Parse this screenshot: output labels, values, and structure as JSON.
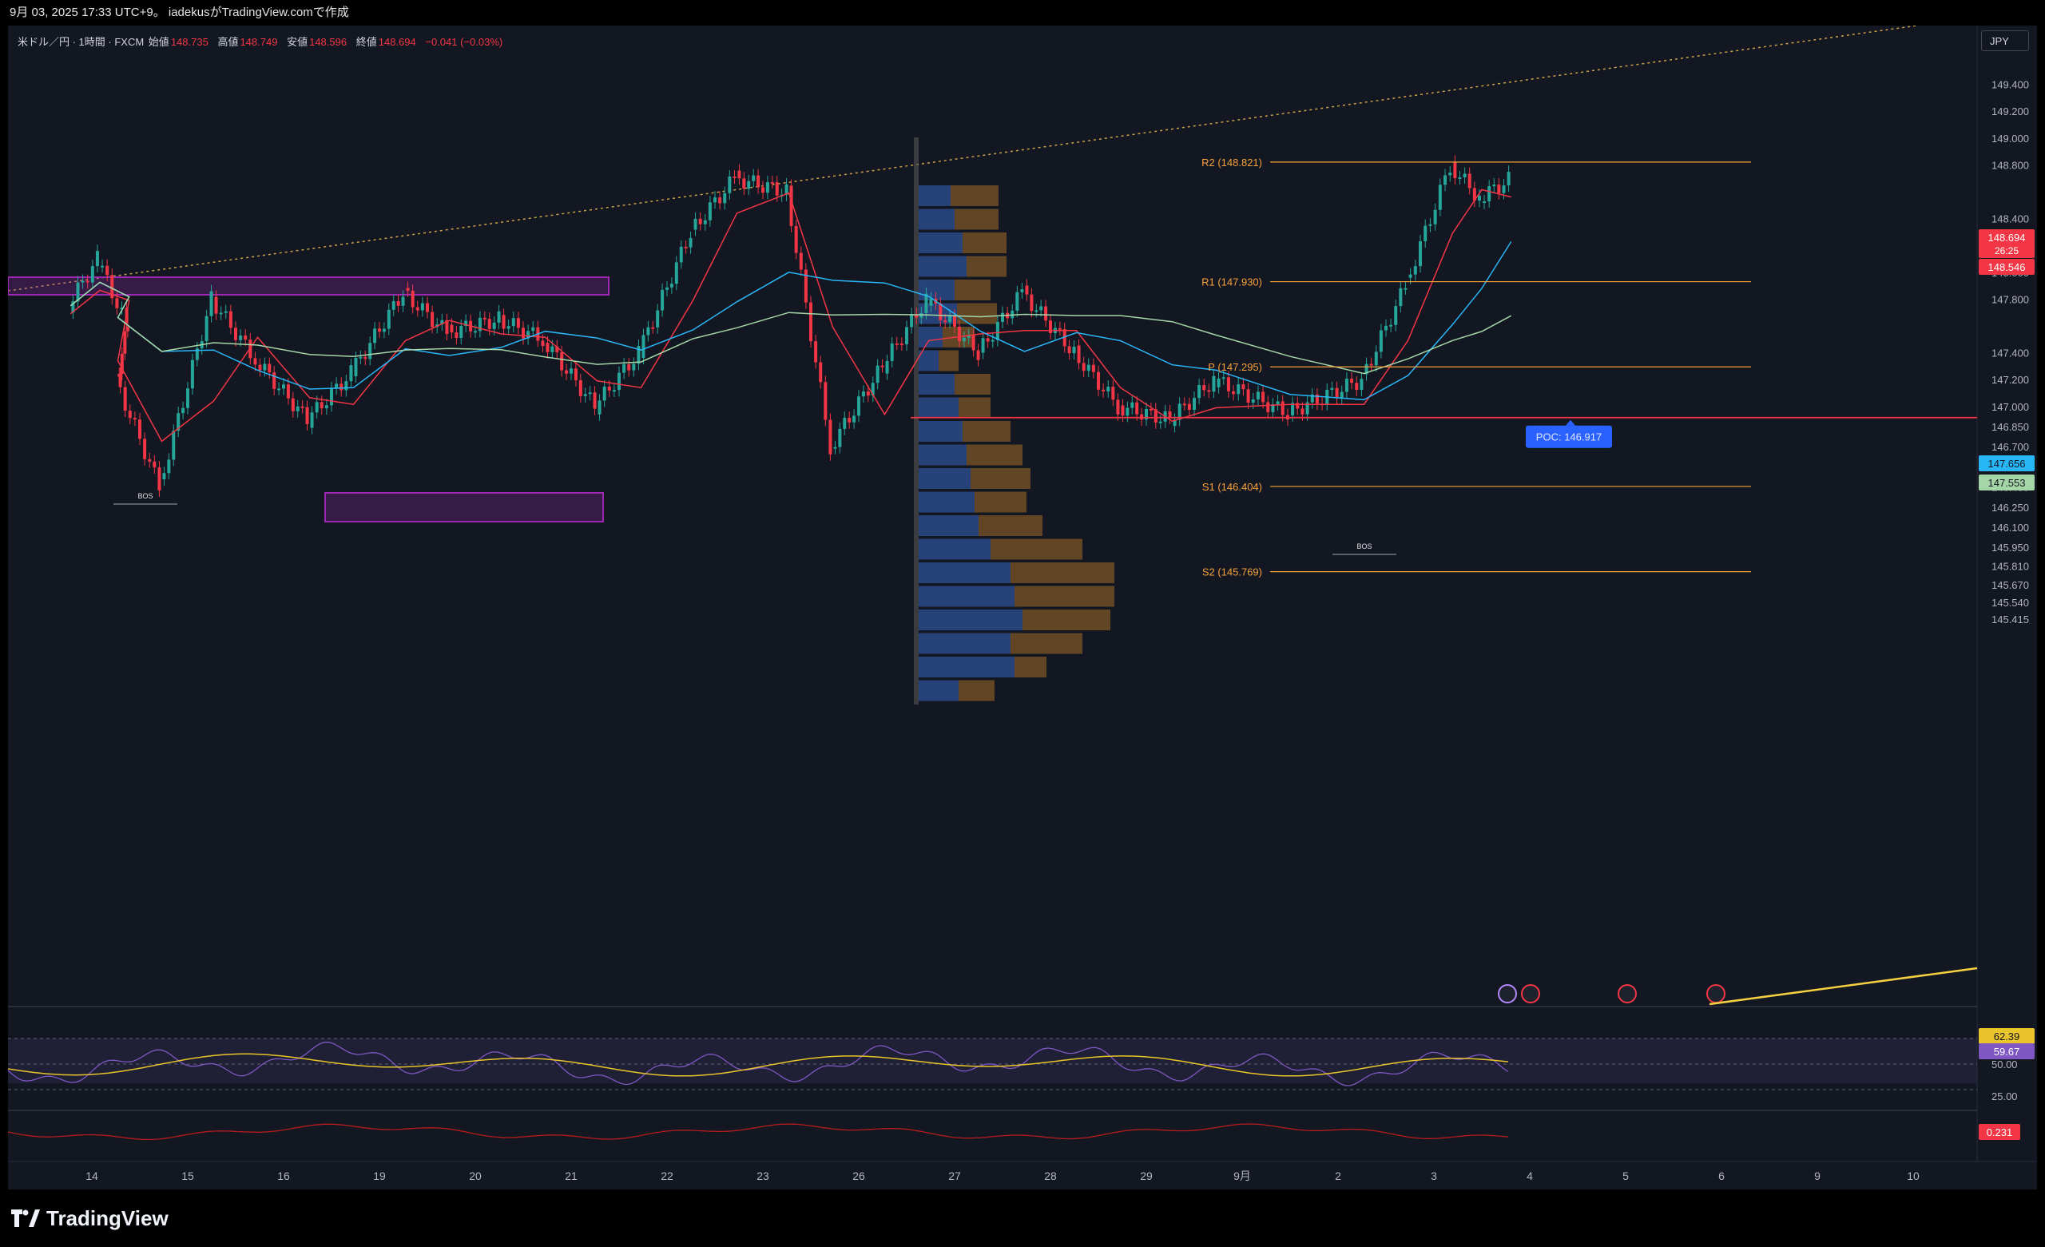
{
  "header": {
    "caption": "9月 03, 2025 17:33 UTC+9。 iadekusがTradingView.comで作成"
  },
  "legend": {
    "symbol": "米ドル／円 · 1時間 · FXCM",
    "open_label": "始値",
    "open": "148.735",
    "high_label": "高値",
    "high": "148.749",
    "low_label": "安値",
    "low": "148.596",
    "close_label": "終値",
    "close": "148.694",
    "change": "−0.041 (−0.03%)"
  },
  "currency_button": "JPY",
  "brand": "TradingView",
  "colors": {
    "up": "#26a69a",
    "down": "#f23645",
    "background": "#131722",
    "pivot_line": "#f7a13a",
    "poc_line": "#f23645",
    "zone": "#9c27b0",
    "ma_red": "#f23645",
    "ma_blue": "#29b6f6",
    "ma_green": "#a5d6a7",
    "rsi": "#7e57c2",
    "rsi_ma": "#e9c42b"
  },
  "chart_data": {
    "type": "candlestick",
    "symbol": "USD/JPY",
    "interval": "1H",
    "y_axis_ticks": [
      "149.400",
      "149.200",
      "149.000",
      "148.800",
      "148.400",
      "148.200",
      "148.000",
      "147.800",
      "147.400",
      "147.200",
      "147.000",
      "146.850",
      "146.700",
      "146.550",
      "146.400",
      "146.250",
      "146.100",
      "145.950",
      "145.810",
      "145.670",
      "145.540",
      "145.415"
    ],
    "x_axis_ticks": [
      "14",
      "15",
      "16",
      "19",
      "20",
      "21",
      "22",
      "23",
      "26",
      "27",
      "28",
      "29",
      "9月",
      "2",
      "3",
      "4",
      "5",
      "6",
      "9",
      "10"
    ],
    "price_series": [
      {
        "day": "13",
        "price": 147.75
      },
      {
        "day": "13",
        "price": 148.1
      },
      {
        "day": "13",
        "price": 147.6
      },
      {
        "day": "14",
        "price": 147.2
      },
      {
        "day": "14",
        "price": 146.4
      },
      {
        "day": "15",
        "price": 147.8
      },
      {
        "day": "15",
        "price": 147.35
      },
      {
        "day": "16",
        "price": 146.9
      },
      {
        "day": "16",
        "price": 147.25
      },
      {
        "day": "19",
        "price": 147.85
      },
      {
        "day": "19",
        "price": 147.55
      },
      {
        "day": "20",
        "price": 147.65
      },
      {
        "day": "20",
        "price": 147.5
      },
      {
        "day": "21",
        "price": 147.0
      },
      {
        "day": "21",
        "price": 147.4
      },
      {
        "day": "22",
        "price": 148.3
      },
      {
        "day": "22",
        "price": 148.7
      },
      {
        "day": "23",
        "price": 148.6
      },
      {
        "day": "23",
        "price": 146.7
      },
      {
        "day": "26",
        "price": 147.3
      },
      {
        "day": "26",
        "price": 147.8
      },
      {
        "day": "27",
        "price": 147.4
      },
      {
        "day": "27",
        "price": 147.85
      },
      {
        "day": "28",
        "price": 147.4
      },
      {
        "day": "28",
        "price": 147.0
      },
      {
        "day": "29",
        "price": 146.9
      },
      {
        "day": "29",
        "price": 147.2
      },
      {
        "day": "9月",
        "price": 146.95
      },
      {
        "day": "2",
        "price": 147.2
      },
      {
        "day": "2",
        "price": 147.9
      },
      {
        "day": "3",
        "price": 148.8
      },
      {
        "day": "3",
        "price": 148.55
      },
      {
        "day": "3",
        "price": 148.69
      }
    ],
    "pivots": [
      {
        "label": "R2 (148.821)",
        "value": 148.821
      },
      {
        "label": "R1 (147.930)",
        "value": 147.93
      },
      {
        "label": "P (147.295)",
        "value": 147.295
      },
      {
        "label": "S1 (146.404)",
        "value": 146.404
      },
      {
        "label": "S2 (145.769)",
        "value": 145.769
      }
    ],
    "poc": {
      "label": "POC: 146.917",
      "value": 146.917
    },
    "bos_labels": [
      "BOS",
      "BOS"
    ],
    "price_badges": [
      {
        "value": "148.694",
        "sub": "26:25",
        "color": "#f23645"
      },
      {
        "value": "148.546",
        "color": "#f23645"
      },
      {
        "value": "147.656",
        "color": "#29b6f6"
      },
      {
        "value": "147.553",
        "color": "#a5d6a7"
      }
    ],
    "rsi": {
      "ticks": [
        "50.00",
        "25.00"
      ],
      "badges": [
        {
          "value": "62.39",
          "color": "#e9c42b"
        },
        {
          "value": "59.67",
          "color": "#7e57c2"
        }
      ]
    },
    "lower_indicator": {
      "badge": "0.231",
      "color": "#f23645"
    }
  }
}
